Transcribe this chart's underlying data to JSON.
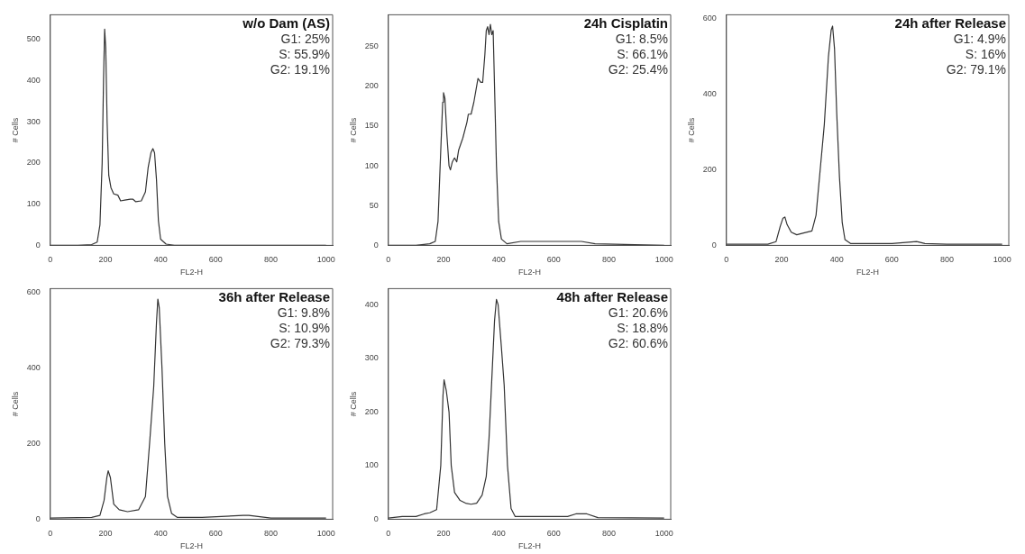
{
  "chart_data": [
    {
      "type": "line",
      "title": "w/o Dam (AS)",
      "annotations": [
        "G1: 25%",
        "S: 55.9%",
        "G2: 19.1%"
      ],
      "xlabel": "FL2-H",
      "ylabel": "# Cells",
      "color": "#333333",
      "xlim": [
        0,
        1024
      ],
      "ylim": [
        0,
        560
      ],
      "xticks": [
        0,
        200,
        400,
        600,
        800,
        1000
      ],
      "yticks": [
        0,
        100,
        200,
        300,
        400,
        500
      ],
      "x": [
        0,
        100,
        150,
        170,
        180,
        188,
        193,
        197,
        201,
        206,
        212,
        220,
        230,
        245,
        255,
        270,
        290,
        300,
        310,
        330,
        345,
        355,
        365,
        372,
        378,
        385,
        392,
        400,
        420,
        450,
        600,
        1000
      ],
      "values": [
        0,
        0,
        2,
        8,
        50,
        200,
        400,
        525,
        480,
        300,
        170,
        140,
        125,
        122,
        108,
        110,
        112,
        112,
        106,
        108,
        130,
        190,
        225,
        235,
        225,
        160,
        60,
        15,
        3,
        0,
        0,
        0
      ]
    },
    {
      "type": "line",
      "title": "24h Cisplatin",
      "annotations": [
        "G1: 8.5%",
        "S: 66.1%",
        "G2: 25.4%"
      ],
      "xlabel": "FL2-H",
      "ylabel": "# Cells",
      "color": "#333333",
      "xlim": [
        0,
        1024
      ],
      "ylim": [
        0,
        290
      ],
      "xticks": [
        0,
        200,
        400,
        600,
        800,
        1000
      ],
      "yticks": [
        0,
        50,
        100,
        150,
        200,
        250
      ],
      "x": [
        0,
        100,
        150,
        170,
        180,
        190,
        197,
        200,
        205,
        212,
        220,
        225,
        232,
        240,
        248,
        255,
        270,
        285,
        290,
        300,
        310,
        320,
        325,
        335,
        342,
        350,
        355,
        360,
        365,
        370,
        375,
        380,
        385,
        392,
        400,
        410,
        430,
        480,
        600,
        700,
        750,
        1000
      ],
      "values": [
        0,
        0,
        2,
        5,
        30,
        120,
        180,
        192,
        185,
        140,
        100,
        95,
        105,
        110,
        105,
        120,
        135,
        155,
        165,
        165,
        180,
        200,
        210,
        205,
        205,
        240,
        270,
        275,
        265,
        278,
        265,
        270,
        200,
        100,
        30,
        8,
        2,
        5,
        5,
        5,
        2,
        0
      ]
    },
    {
      "type": "line",
      "title": "24h after Release",
      "annotations": [
        "G1: 4.9%",
        "S: 16%",
        "G2: 79.1%"
      ],
      "xlabel": "FL2-H",
      "ylabel": "# Cells",
      "color": "#333333",
      "xlim": [
        0,
        1024
      ],
      "ylim": [
        0,
        610
      ],
      "xticks": [
        0,
        200,
        400,
        600,
        800,
        1000
      ],
      "yticks": [
        0,
        200,
        400,
        600
      ],
      "x": [
        0,
        150,
        180,
        195,
        205,
        212,
        220,
        235,
        255,
        280,
        310,
        325,
        340,
        355,
        370,
        380,
        385,
        392,
        400,
        410,
        420,
        430,
        450,
        600,
        690,
        720,
        800,
        1000
      ],
      "values": [
        3,
        3,
        10,
        50,
        72,
        75,
        55,
        35,
        28,
        33,
        38,
        80,
        200,
        320,
        500,
        570,
        580,
        520,
        350,
        180,
        60,
        15,
        5,
        5,
        10,
        5,
        3,
        3
      ]
    },
    {
      "type": "line",
      "title": "36h after Release",
      "annotations": [
        "G1: 9.8%",
        "S: 10.9%",
        "G2: 79.3%"
      ],
      "xlabel": "FL2-H",
      "ylabel": "# Cells",
      "color": "#333333",
      "xlim": [
        0,
        1024
      ],
      "ylim": [
        0,
        610
      ],
      "xticks": [
        0,
        200,
        400,
        600,
        800,
        1000
      ],
      "yticks": [
        0,
        200,
        400,
        600
      ],
      "x": [
        0,
        150,
        180,
        195,
        205,
        210,
        218,
        230,
        250,
        280,
        320,
        345,
        360,
        375,
        385,
        390,
        395,
        405,
        415,
        425,
        440,
        460,
        550,
        700,
        720,
        800,
        1000
      ],
      "values": [
        3,
        5,
        10,
        50,
        110,
        128,
        110,
        40,
        25,
        20,
        25,
        60,
        200,
        350,
        520,
        582,
        560,
        400,
        200,
        60,
        15,
        5,
        5,
        10,
        10,
        3,
        3
      ]
    },
    {
      "type": "line",
      "title": "48h after Release",
      "annotations": [
        "G1: 20.6%",
        "S: 18.8%",
        "G2: 60.6%"
      ],
      "xlabel": "FL2-H",
      "ylabel": "# Cells",
      "color": "#333333",
      "xlim": [
        0,
        1024
      ],
      "ylim": [
        0,
        430
      ],
      "xticks": [
        0,
        200,
        400,
        600,
        800,
        1000
      ],
      "yticks": [
        0,
        100,
        200,
        300,
        400
      ],
      "x": [
        0,
        50,
        100,
        130,
        150,
        175,
        190,
        198,
        202,
        210,
        220,
        228,
        240,
        260,
        280,
        300,
        320,
        340,
        355,
        365,
        375,
        385,
        392,
        398,
        410,
        420,
        432,
        445,
        460,
        500,
        650,
        680,
        720,
        760,
        1000
      ],
      "values": [
        2,
        5,
        5,
        10,
        12,
        18,
        100,
        230,
        260,
        240,
        200,
        100,
        50,
        35,
        30,
        28,
        30,
        45,
        80,
        150,
        260,
        370,
        410,
        400,
        320,
        250,
        100,
        20,
        5,
        5,
        5,
        10,
        10,
        3,
        2
      ]
    }
  ]
}
